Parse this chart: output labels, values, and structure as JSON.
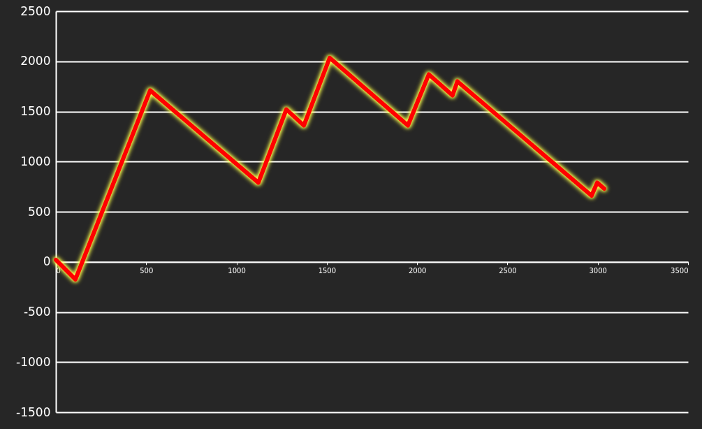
{
  "chart_data": {
    "type": "line",
    "x": [
      0,
      108,
      522,
      1121,
      1276,
      1373,
      1516,
      1949,
      2065,
      2196,
      2223,
      2966,
      2997,
      3036
    ],
    "series": [
      {
        "color": "#ff0000",
        "values": [
          20,
          -175,
          1710,
          790,
          1520,
          1360,
          2035,
          1360,
          1870,
          1660,
          1800,
          660,
          790,
          730
        ]
      }
    ],
    "xlim": [
      0,
      3500
    ],
    "xticks": [
      0,
      500,
      1000,
      1500,
      2000,
      2500,
      3000,
      3500
    ],
    "ylim": [
      -1500,
      2500
    ],
    "yticks": [
      -1500,
      -1000,
      -500,
      0,
      500,
      1000,
      1500,
      2000,
      2500
    ],
    "grid": "y"
  }
}
